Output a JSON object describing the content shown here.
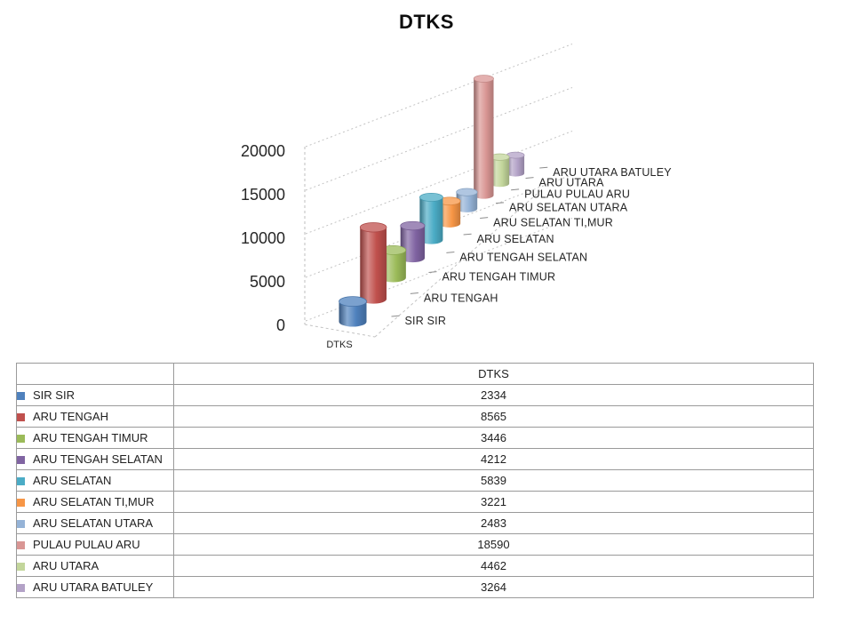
{
  "chart_data": {
    "type": "bar",
    "subtype": "3d-cylinder",
    "title": "DTKS",
    "series_name": "DTKS",
    "x_axis_label": "DTKS",
    "categories": [
      "SIR SIR",
      "ARU TENGAH",
      "ARU TENGAH TIMUR",
      "ARU TENGAH SELATAN",
      "ARU SELATAN",
      "ARU SELATAN TI,MUR",
      "ARU SELATAN UTARA",
      "PULAU PULAU ARU",
      "ARU UTARA",
      "ARU UTARA BATULEY"
    ],
    "values": [
      2334,
      8565,
      3446,
      4212,
      5839,
      3221,
      2483,
      18590,
      4462,
      3264
    ],
    "colors": [
      "#4F81BD",
      "#C0504D",
      "#9BBB59",
      "#8064A2",
      "#4BACC6",
      "#F79646",
      "#95B3D7",
      "#D99694",
      "#C3D69B",
      "#B3A2C7"
    ],
    "y_ticks": [
      0,
      5000,
      10000,
      15000,
      20000
    ],
    "ylim": [
      0,
      20000
    ],
    "grid": "dotted value-axis gridlines on 3-D walls",
    "legend_position": "none"
  },
  "table": {
    "value_header": "DTKS",
    "rows": [
      {
        "label": "SIR SIR",
        "value": "2334"
      },
      {
        "label": "ARU TENGAH",
        "value": "8565"
      },
      {
        "label": "ARU TENGAH TIMUR",
        "value": "3446"
      },
      {
        "label": "ARU TENGAH SELATAN",
        "value": "4212"
      },
      {
        "label": "ARU SELATAN",
        "value": "5839"
      },
      {
        "label": "ARU SELATAN TI,MUR",
        "value": "3221"
      },
      {
        "label": "ARU SELATAN UTARA",
        "value": "2483"
      },
      {
        "label": "PULAU PULAU ARU",
        "value": "18590"
      },
      {
        "label": "ARU UTARA",
        "value": "4462"
      },
      {
        "label": "ARU UTARA BATULEY",
        "value": "3264"
      }
    ]
  }
}
